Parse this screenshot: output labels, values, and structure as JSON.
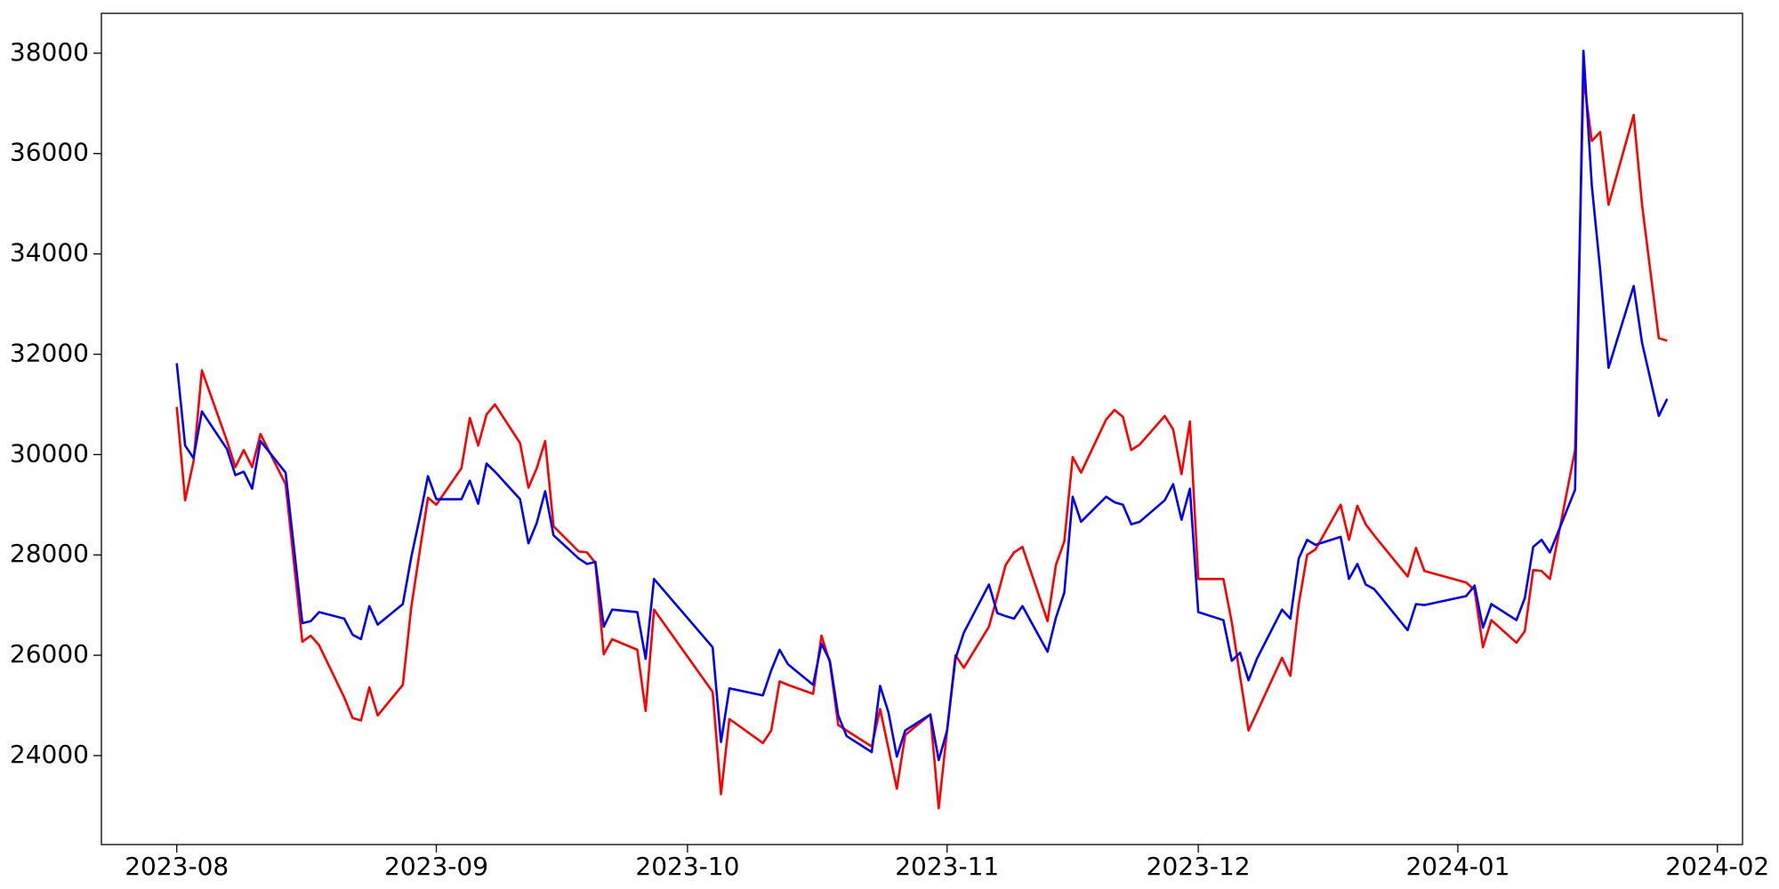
{
  "chart_data": {
    "type": "line",
    "x": [
      "2023-08-01",
      "2023-08-02",
      "2023-08-03",
      "2023-08-04",
      "2023-08-07",
      "2023-08-08",
      "2023-08-09",
      "2023-08-10",
      "2023-08-11",
      "2023-08-14",
      "2023-08-16",
      "2023-08-17",
      "2023-08-18",
      "2023-08-21",
      "2023-08-22",
      "2023-08-23",
      "2023-08-24",
      "2023-08-25",
      "2023-08-28",
      "2023-08-29",
      "2023-08-30",
      "2023-08-31",
      "2023-09-01",
      "2023-09-04",
      "2023-09-05",
      "2023-09-06",
      "2023-09-07",
      "2023-09-08",
      "2023-09-11",
      "2023-09-12",
      "2023-09-13",
      "2023-09-14",
      "2023-09-15",
      "2023-09-18",
      "2023-09-19",
      "2023-09-20",
      "2023-09-21",
      "2023-09-22",
      "2023-09-25",
      "2023-09-26",
      "2023-09-27",
      "2023-10-04",
      "2023-10-05",
      "2023-10-06",
      "2023-10-10",
      "2023-10-11",
      "2023-10-12",
      "2023-10-13",
      "2023-10-16",
      "2023-10-17",
      "2023-10-18",
      "2023-10-19",
      "2023-10-20",
      "2023-10-23",
      "2023-10-24",
      "2023-10-25",
      "2023-10-26",
      "2023-10-27",
      "2023-10-30",
      "2023-10-31",
      "2023-11-01",
      "2023-11-02",
      "2023-11-03",
      "2023-11-06",
      "2023-11-07",
      "2023-11-08",
      "2023-11-09",
      "2023-11-10",
      "2023-11-13",
      "2023-11-14",
      "2023-11-15",
      "2023-11-16",
      "2023-11-17",
      "2023-11-20",
      "2023-11-21",
      "2023-11-22",
      "2023-11-23",
      "2023-11-24",
      "2023-11-27",
      "2023-11-28",
      "2023-11-29",
      "2023-11-30",
      "2023-12-01",
      "2023-12-04",
      "2023-12-05",
      "2023-12-06",
      "2023-12-07",
      "2023-12-08",
      "2023-12-11",
      "2023-12-12",
      "2023-12-13",
      "2023-12-14",
      "2023-12-15",
      "2023-12-18",
      "2023-12-19",
      "2023-12-20",
      "2023-12-21",
      "2023-12-22",
      "2023-12-26",
      "2023-12-27",
      "2023-12-28",
      "2024-01-02",
      "2024-01-03",
      "2024-01-04",
      "2024-01-05",
      "2024-01-08",
      "2024-01-09",
      "2024-01-10",
      "2024-01-11",
      "2024-01-12",
      "2024-01-15",
      "2024-01-16",
      "2024-01-17",
      "2024-01-18",
      "2024-01-19",
      "2024-01-22",
      "2024-01-23",
      "2024-01-24",
      "2024-01-25",
      "2024-01-26"
    ],
    "series": [
      {
        "color": "red",
        "values": [
          30950,
          29090,
          29860,
          31680,
          30270,
          29750,
          30090,
          29750,
          30410,
          29410,
          26270,
          26390,
          26200,
          25160,
          24750,
          24700,
          25360,
          24800,
          25410,
          26950,
          28050,
          29140,
          29000,
          29730,
          30730,
          30180,
          30800,
          31000,
          30230,
          29340,
          29730,
          30270,
          28570,
          28070,
          28050,
          27840,
          26020,
          26320,
          26110,
          24890,
          26910,
          25270,
          23230,
          24730,
          24250,
          24500,
          25480,
          25410,
          25230,
          26390,
          25860,
          24610,
          24500,
          24180,
          24930,
          24140,
          23340,
          24410,
          24820,
          22950,
          24500,
          26000,
          25750,
          26570,
          27180,
          27800,
          28050,
          28160,
          26680,
          27800,
          28270,
          29950,
          29640,
          30700,
          30890,
          30750,
          30090,
          30200,
          30770,
          30500,
          29610,
          30660,
          27520,
          27520,
          26660,
          25570,
          24500,
          24860,
          25950,
          25590,
          27020,
          28000,
          28110,
          29000,
          28300,
          28980,
          28610,
          28390,
          27570,
          28140,
          27680,
          27450,
          27300,
          26160,
          26700,
          26250,
          26480,
          27700,
          27680,
          27520,
          30090,
          37520,
          36250,
          36430,
          34980,
          36770,
          34980,
          33650,
          32320,
          32270
        ]
      },
      {
        "color": "blue",
        "values": [
          31820,
          30180,
          29930,
          30860,
          30110,
          29590,
          29660,
          29320,
          30270,
          29640,
          26640,
          26680,
          26860,
          26730,
          26410,
          26320,
          26980,
          26610,
          27020,
          27950,
          28730,
          29570,
          29110,
          29110,
          29480,
          29020,
          29820,
          29660,
          29110,
          28230,
          28640,
          29270,
          28390,
          27930,
          27820,
          27860,
          26570,
          26910,
          26860,
          25930,
          27520,
          26160,
          24270,
          25340,
          25200,
          25700,
          26110,
          25820,
          25410,
          26230,
          25890,
          24800,
          24390,
          24070,
          25390,
          24860,
          23980,
          24500,
          24820,
          23910,
          24500,
          25930,
          26450,
          27410,
          26840,
          26780,
          26730,
          26980,
          26070,
          26750,
          27250,
          29160,
          28660,
          29160,
          29050,
          29000,
          28610,
          28660,
          29090,
          29410,
          28700,
          29320,
          26860,
          26700,
          25890,
          26050,
          25500,
          25930,
          26910,
          26730,
          27930,
          28300,
          28200,
          28360,
          27520,
          27820,
          27410,
          27320,
          26500,
          27020,
          27000,
          27180,
          27390,
          26550,
          27020,
          26700,
          27140,
          28160,
          28300,
          28050,
          29300,
          38050,
          35360,
          33680,
          31730,
          33360,
          32230,
          31500,
          30770,
          31110
        ]
      }
    ],
    "xlim": [
      "2023-07-23",
      "2024-02-04"
    ],
    "xticks": [
      "2023-08",
      "2023-09",
      "2023-10",
      "2023-11",
      "2023-12",
      "2024-01",
      "2024-02"
    ],
    "ylim": [
      22227,
      38795
    ],
    "yticks": [
      24000,
      26000,
      28000,
      30000,
      32000,
      34000,
      36000,
      38000
    ],
    "grid": false
  }
}
